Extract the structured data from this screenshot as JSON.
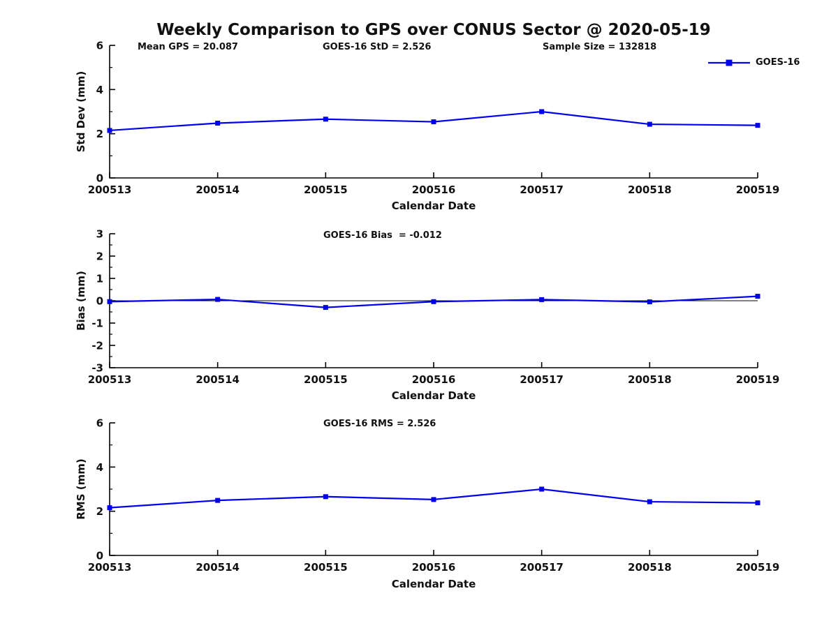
{
  "title": "Weekly Comparison to GPS over CONUS Sector @ 2020-05-19",
  "header_annotations": {
    "mean_gps": "Mean GPS = 20.087",
    "goes16_std": "GOES-16 StD = 2.526",
    "sample_size": "Sample Size = 132818"
  },
  "legend": {
    "label": "GOES-16",
    "position": "top-right",
    "color": "#0000ee"
  },
  "chart_data": [
    {
      "id": "std-dev",
      "type": "line",
      "title": "",
      "annotation": "",
      "categories": [
        "200513",
        "200514",
        "200515",
        "200516",
        "200517",
        "200518",
        "200519"
      ],
      "series": [
        {
          "name": "GOES-16",
          "values": [
            2.15,
            2.48,
            2.66,
            2.54,
            3.0,
            2.43,
            2.38
          ]
        }
      ],
      "xlabel": "Calendar Date",
      "ylabel": "Std Dev (mm)",
      "ylim": [
        0,
        6
      ],
      "yticks": [
        0,
        2,
        4,
        6
      ],
      "yminor_step": 1,
      "zero_line": false,
      "grid": false
    },
    {
      "id": "bias",
      "type": "line",
      "title": "",
      "annotation": "GOES-16 Bias  = -0.012",
      "categories": [
        "200513",
        "200514",
        "200515",
        "200516",
        "200517",
        "200518",
        "200519"
      ],
      "series": [
        {
          "name": "GOES-16",
          "values": [
            -0.04,
            0.06,
            -0.3,
            -0.04,
            0.05,
            -0.05,
            0.2
          ]
        }
      ],
      "xlabel": "Calendar Date",
      "ylabel": "Bias (mm)",
      "ylim": [
        -3,
        3
      ],
      "yticks": [
        -3,
        -2,
        -1,
        0,
        1,
        2,
        3
      ],
      "yminor_step": 0.5,
      "zero_line": true,
      "grid": false
    },
    {
      "id": "rms",
      "type": "line",
      "title": "",
      "annotation": "GOES-16 RMS = 2.526",
      "categories": [
        "200513",
        "200514",
        "200515",
        "200516",
        "200517",
        "200518",
        "200519"
      ],
      "series": [
        {
          "name": "GOES-16",
          "values": [
            2.16,
            2.49,
            2.66,
            2.53,
            3.0,
            2.43,
            2.38
          ]
        }
      ],
      "xlabel": "Calendar Date",
      "ylabel": "RMS (mm)",
      "ylim": [
        0,
        6
      ],
      "yticks": [
        0,
        2,
        4,
        6
      ],
      "yminor_step": 1,
      "zero_line": false,
      "grid": false
    }
  ]
}
